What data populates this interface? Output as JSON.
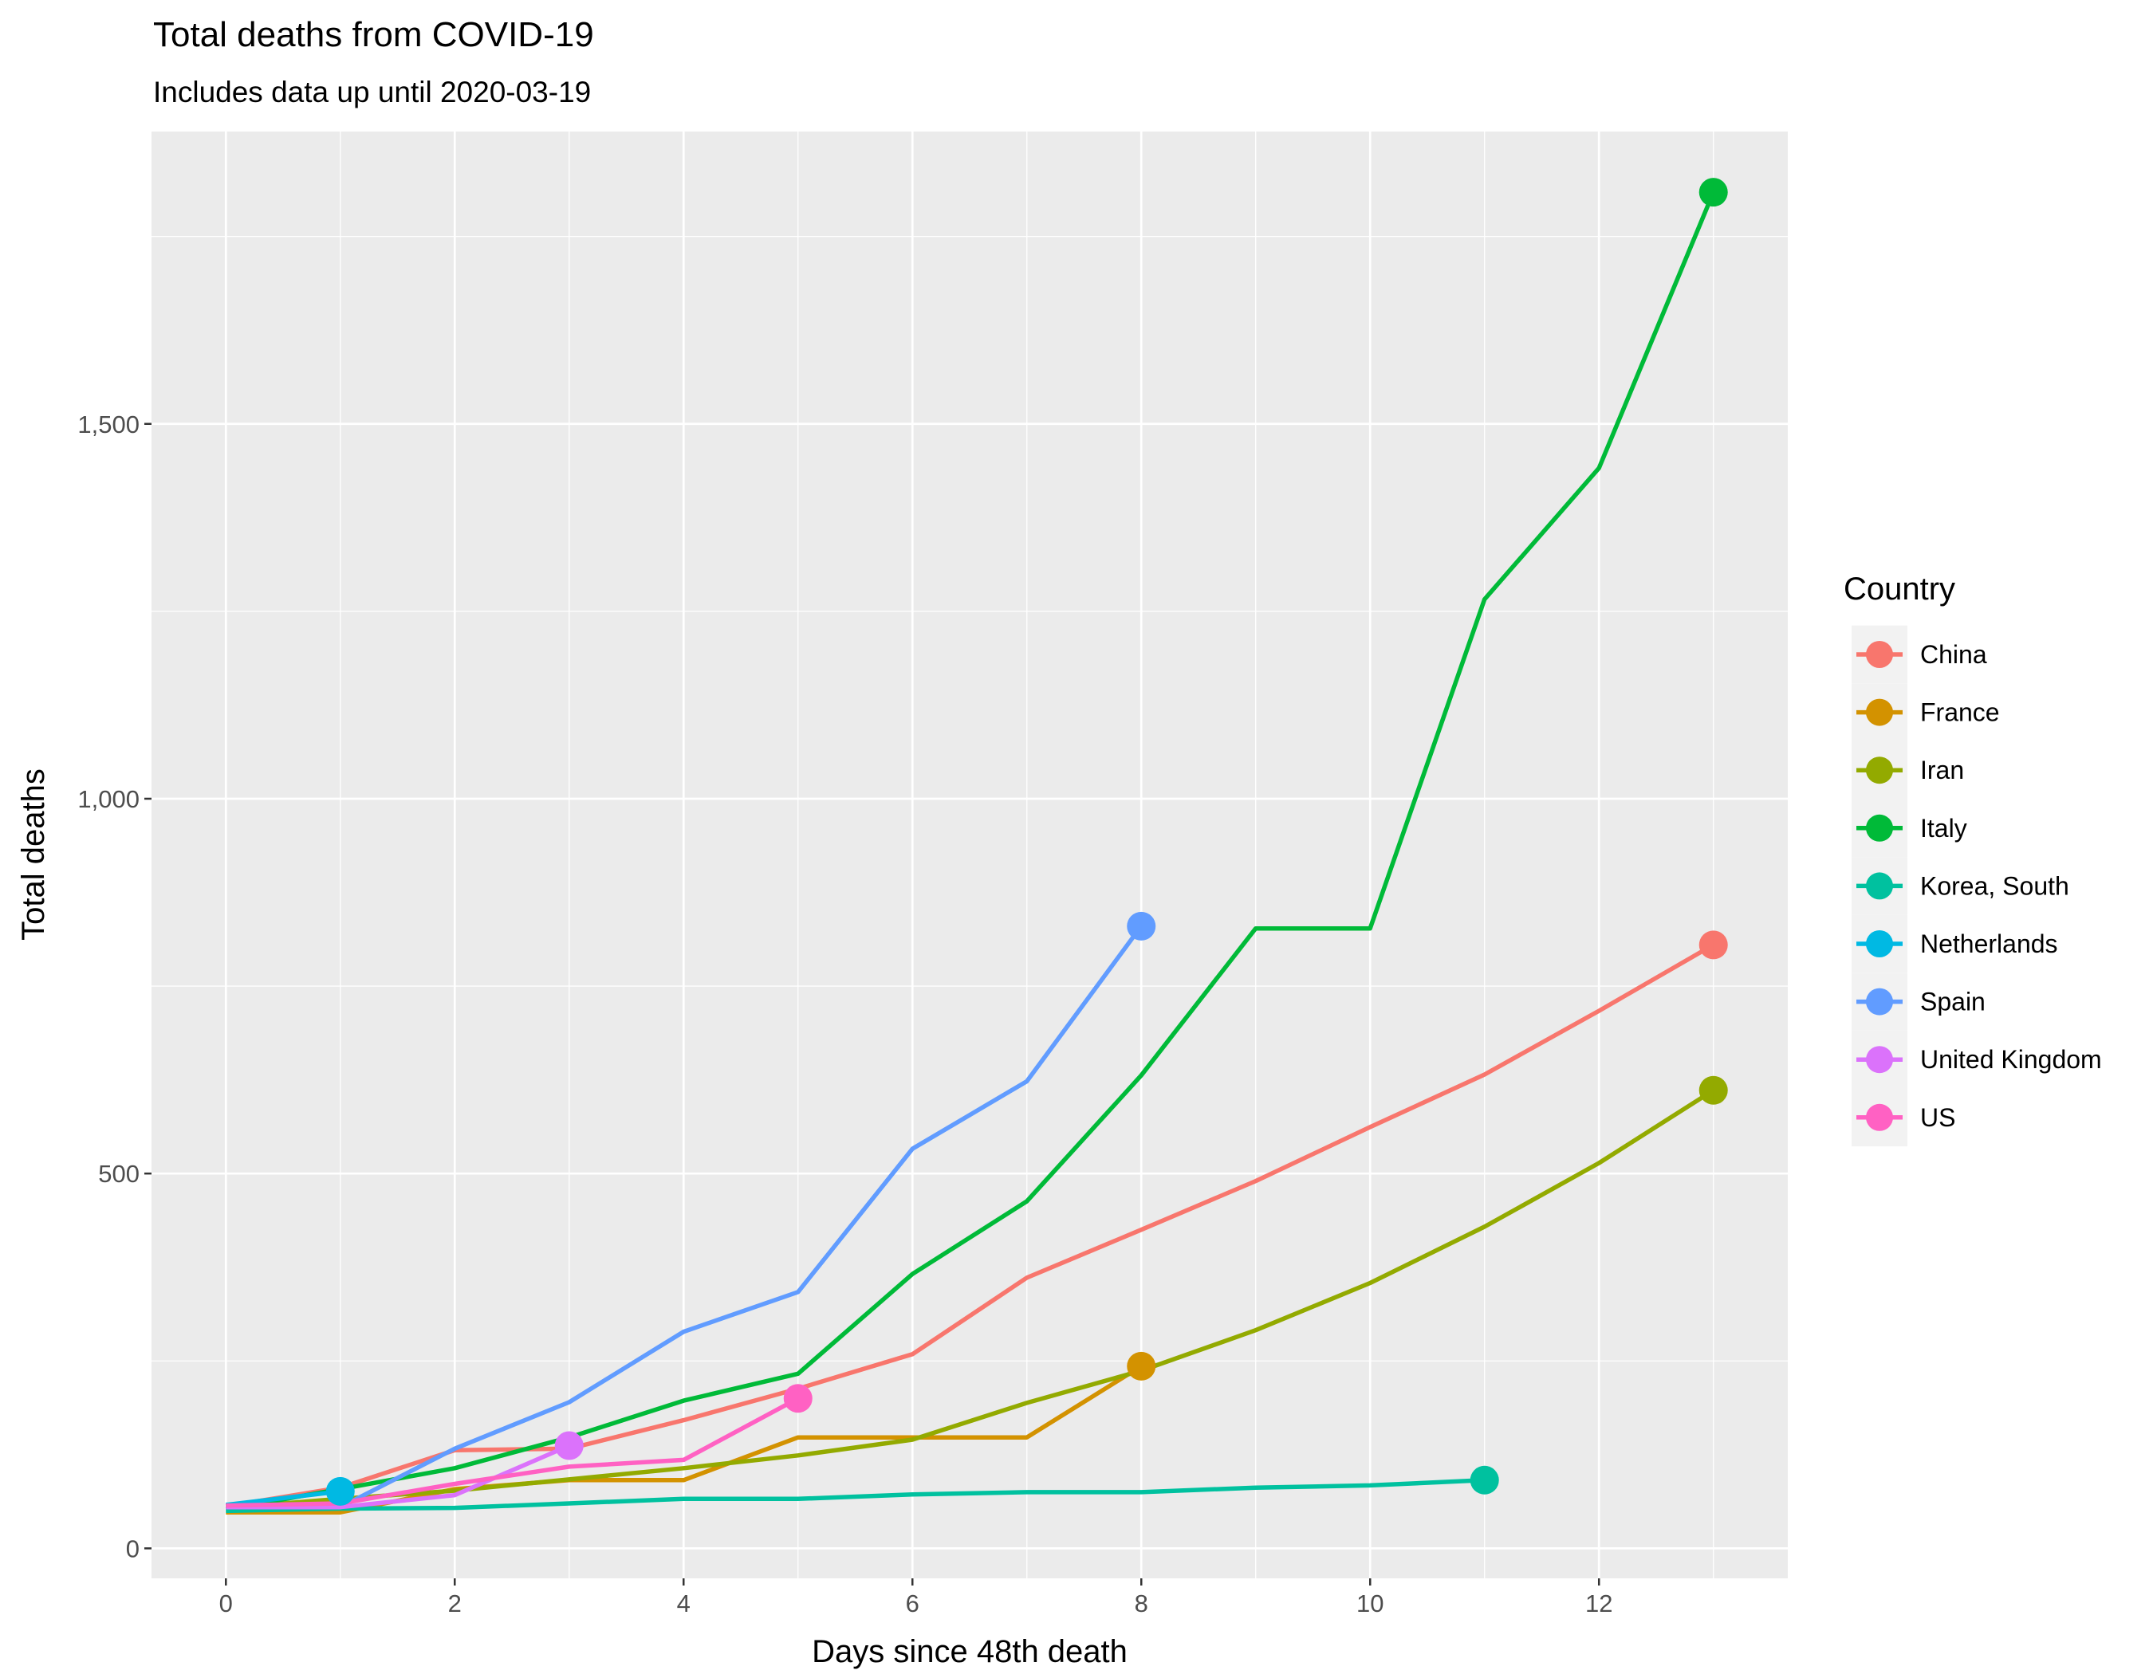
{
  "chart_data": {
    "type": "line",
    "title": "Total deaths from COVID-19",
    "subtitle": "Includes data up until 2020-03-19",
    "xlabel": "Days since 48th death",
    "ylabel": "Total deaths",
    "xlim": [
      -0.65,
      13.65
    ],
    "ylim": [
      -40,
      1890
    ],
    "x_ticks": [
      0,
      2,
      4,
      6,
      8,
      10,
      12
    ],
    "y_ticks": [
      0,
      500,
      1000,
      1500
    ],
    "y_tick_labels": [
      "0",
      "500",
      "1,000",
      "1,500"
    ],
    "grid": true,
    "legend": {
      "title": "Country",
      "placement": "right"
    },
    "series": [
      {
        "name": "China",
        "color": "#F8766D",
        "x": [
          0,
          1,
          2,
          3,
          4,
          5,
          6,
          7,
          8,
          9,
          10,
          11,
          12,
          13
        ],
        "y": [
          56,
          81,
          131,
          133,
          171,
          213,
          259,
          361,
          425,
          490,
          562,
          632,
          717,
          805
        ]
      },
      {
        "name": "France",
        "color": "#D39200",
        "x": [
          0,
          1,
          2,
          3,
          4,
          5,
          6,
          7,
          8
        ],
        "y": [
          48,
          48,
          79,
          91,
          91,
          148,
          148,
          148,
          243
        ]
      },
      {
        "name": "Iran",
        "color": "#93AA00",
        "x": [
          0,
          1,
          2,
          3,
          4,
          5,
          6,
          7,
          8,
          9,
          10,
          11,
          12,
          13
        ],
        "y": [
          54,
          66,
          77,
          92,
          107,
          124,
          145,
          194,
          237,
          291,
          354,
          429,
          514,
          611
        ]
      },
      {
        "name": "Italy",
        "color": "#00BA38",
        "x": [
          0,
          1,
          2,
          3,
          4,
          5,
          6,
          7,
          8,
          9,
          10,
          11,
          12,
          13
        ],
        "y": [
          52,
          79,
          107,
          148,
          197,
          233,
          366,
          463,
          631,
          827,
          827,
          1266,
          1441,
          1809
        ]
      },
      {
        "name": "Korea, South",
        "color": "#00C19F",
        "x": [
          0,
          1,
          2,
          3,
          4,
          5,
          6,
          7,
          8,
          9,
          10,
          11
        ],
        "y": [
          50,
          53,
          54,
          60,
          66,
          66,
          72,
          75,
          75,
          81,
          84,
          91
        ]
      },
      {
        "name": "Netherlands",
        "color": "#00B9E3",
        "x": [
          0,
          1
        ],
        "y": [
          58,
          76
        ]
      },
      {
        "name": "Spain",
        "color": "#619CFF",
        "x": [
          0,
          1,
          2,
          3,
          4,
          5,
          6,
          7,
          8
        ],
        "y": [
          55,
          55,
          133,
          195,
          289,
          342,
          533,
          623,
          830
        ]
      },
      {
        "name": "United Kingdom",
        "color": "#DB72FB",
        "x": [
          0,
          1,
          2,
          3
        ],
        "y": [
          55,
          55,
          71,
          137
        ]
      },
      {
        "name": "US",
        "color": "#FF61C3",
        "x": [
          0,
          1,
          2,
          3,
          4,
          5
        ],
        "y": [
          57,
          60,
          86,
          109,
          118,
          200
        ]
      }
    ]
  }
}
